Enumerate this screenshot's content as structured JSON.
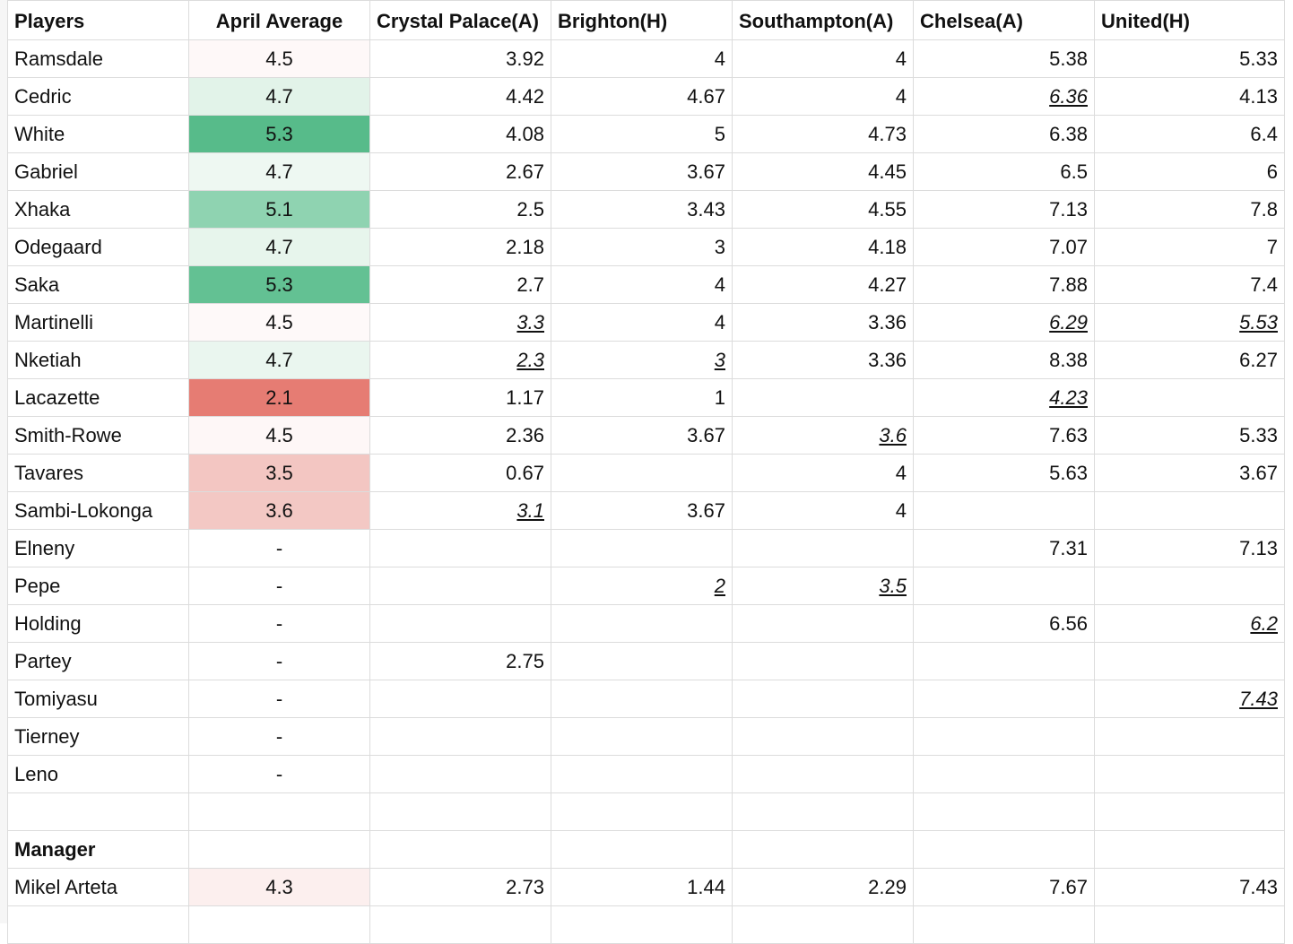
{
  "headers": [
    "Players",
    "April Average",
    "Crystal Palace(A)",
    "Brighton(H)",
    "Southampton(A)",
    "Chelsea(A)",
    "United(H)"
  ],
  "players": [
    {
      "name": "Ramsdale",
      "avg": "4.5",
      "avg_color": "#fef8f8",
      "scores": [
        {
          "v": "3.92"
        },
        {
          "v": "4"
        },
        {
          "v": "4"
        },
        {
          "v": "5.38"
        },
        {
          "v": "5.33"
        }
      ]
    },
    {
      "name": "Cedric",
      "avg": "4.7",
      "avg_color": "#e2f3e9",
      "scores": [
        {
          "v": "4.42"
        },
        {
          "v": "4.67"
        },
        {
          "v": "4"
        },
        {
          "v": "6.36",
          "italic": true
        },
        {
          "v": "4.13"
        }
      ]
    },
    {
      "name": "White",
      "avg": "5.3",
      "avg_color": "#57bb8a",
      "scores": [
        {
          "v": "4.08"
        },
        {
          "v": "5"
        },
        {
          "v": "4.73"
        },
        {
          "v": "6.38"
        },
        {
          "v": "6.4"
        }
      ]
    },
    {
      "name": "Gabriel",
      "avg": "4.7",
      "avg_color": "#eef8f2",
      "scores": [
        {
          "v": "2.67"
        },
        {
          "v": "3.67"
        },
        {
          "v": "4.45"
        },
        {
          "v": "6.5"
        },
        {
          "v": "6"
        }
      ]
    },
    {
      "name": "Xhaka",
      "avg": "5.1",
      "avg_color": "#8fd3b1",
      "scores": [
        {
          "v": "2.5"
        },
        {
          "v": "3.43"
        },
        {
          "v": "4.55"
        },
        {
          "v": "7.13"
        },
        {
          "v": "7.8"
        }
      ]
    },
    {
      "name": "Odegaard",
      "avg": "4.7",
      "avg_color": "#e7f5ec",
      "scores": [
        {
          "v": "2.18"
        },
        {
          "v": "3"
        },
        {
          "v": "4.18"
        },
        {
          "v": "7.07"
        },
        {
          "v": "7"
        }
      ]
    },
    {
      "name": "Saka",
      "avg": "5.3",
      "avg_color": "#63c193",
      "scores": [
        {
          "v": "2.7"
        },
        {
          "v": "4"
        },
        {
          "v": "4.27"
        },
        {
          "v": "7.88"
        },
        {
          "v": "7.4"
        }
      ]
    },
    {
      "name": "Martinelli",
      "avg": "4.5",
      "avg_color": "#fef9f9",
      "scores": [
        {
          "v": "3.3",
          "italic": true
        },
        {
          "v": "4"
        },
        {
          "v": "3.36"
        },
        {
          "v": "6.29",
          "italic": true
        },
        {
          "v": "5.53",
          "italic": true
        }
      ]
    },
    {
      "name": "Nketiah",
      "avg": "4.7",
      "avg_color": "#eaf6ef",
      "scores": [
        {
          "v": "2.3",
          "italic": true
        },
        {
          "v": "3",
          "italic": true
        },
        {
          "v": "3.36"
        },
        {
          "v": "8.38"
        },
        {
          "v": "6.27"
        }
      ]
    },
    {
      "name": "Lacazette",
      "avg": "2.1",
      "avg_color": "#e67c73",
      "scores": [
        {
          "v": "1.17"
        },
        {
          "v": "1"
        },
        {
          "v": ""
        },
        {
          "v": "4.23",
          "italic": true
        },
        {
          "v": ""
        }
      ]
    },
    {
      "name": "Smith-Rowe",
      "avg": "4.5",
      "avg_color": "#fef7f7",
      "scores": [
        {
          "v": "2.36"
        },
        {
          "v": "3.67"
        },
        {
          "v": "3.6",
          "italic": true
        },
        {
          "v": "7.63"
        },
        {
          "v": "5.33"
        }
      ]
    },
    {
      "name": "Tavares",
      "avg": "3.5",
      "avg_color": "#f3c6c2",
      "scores": [
        {
          "v": "0.67"
        },
        {
          "v": ""
        },
        {
          "v": "4"
        },
        {
          "v": "5.63"
        },
        {
          "v": "3.67"
        }
      ]
    },
    {
      "name": "Sambi-Lokonga",
      "avg": "3.6",
      "avg_color": "#f3c8c4",
      "scores": [
        {
          "v": "3.1",
          "italic": true
        },
        {
          "v": "3.67"
        },
        {
          "v": "4"
        },
        {
          "v": ""
        },
        {
          "v": ""
        }
      ]
    },
    {
      "name": "Elneny",
      "avg": "-",
      "avg_color": "#ffffff",
      "scores": [
        {
          "v": ""
        },
        {
          "v": ""
        },
        {
          "v": ""
        },
        {
          "v": "7.31"
        },
        {
          "v": "7.13"
        }
      ]
    },
    {
      "name": "Pepe",
      "avg": "-",
      "avg_color": "#ffffff",
      "scores": [
        {
          "v": ""
        },
        {
          "v": "2",
          "italic": true
        },
        {
          "v": "3.5",
          "italic": true
        },
        {
          "v": ""
        },
        {
          "v": ""
        }
      ]
    },
    {
      "name": "Holding",
      "avg": "-",
      "avg_color": "#ffffff",
      "scores": [
        {
          "v": ""
        },
        {
          "v": ""
        },
        {
          "v": ""
        },
        {
          "v": "6.56"
        },
        {
          "v": "6.2",
          "italic": true
        }
      ]
    },
    {
      "name": "Partey",
      "avg": "-",
      "avg_color": "#ffffff",
      "scores": [
        {
          "v": "2.75"
        },
        {
          "v": ""
        },
        {
          "v": ""
        },
        {
          "v": ""
        },
        {
          "v": ""
        }
      ]
    },
    {
      "name": "Tomiyasu",
      "avg": "-",
      "avg_color": "#ffffff",
      "scores": [
        {
          "v": ""
        },
        {
          "v": ""
        },
        {
          "v": ""
        },
        {
          "v": ""
        },
        {
          "v": "7.43",
          "italic": true
        }
      ]
    },
    {
      "name": "Tierney",
      "avg": "-",
      "avg_color": "#ffffff",
      "scores": [
        {
          "v": ""
        },
        {
          "v": ""
        },
        {
          "v": ""
        },
        {
          "v": ""
        },
        {
          "v": ""
        }
      ]
    },
    {
      "name": "Leno",
      "avg": "-",
      "avg_color": "#ffffff",
      "scores": [
        {
          "v": ""
        },
        {
          "v": ""
        },
        {
          "v": ""
        },
        {
          "v": ""
        },
        {
          "v": ""
        }
      ]
    }
  ],
  "manager_section": {
    "title": "Manager",
    "rows": [
      {
        "name": "Mikel Arteta",
        "avg": "4.3",
        "avg_color": "#fcefee",
        "scores": [
          {
            "v": "2.73"
          },
          {
            "v": "1.44"
          },
          {
            "v": "2.29"
          },
          {
            "v": "7.67"
          },
          {
            "v": "7.43"
          }
        ]
      }
    ]
  }
}
